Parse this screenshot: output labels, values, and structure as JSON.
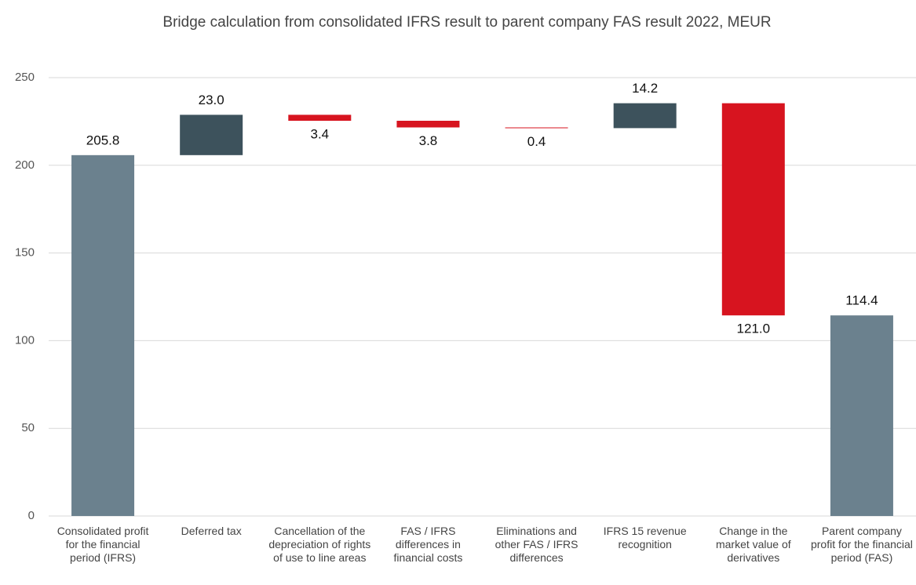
{
  "chart_data": {
    "type": "waterfall",
    "title": "Bridge calculation from consolidated IFRS result to parent company FAS result 2022, MEUR",
    "categories": [
      "Consolidated profit for the financial period (IFRS)",
      "Deferred tax",
      "Cancellation of the depreciation of rights of use to line areas",
      "FAS / IFRS differences in financial costs",
      "Eliminations and other FAS / IFRS differences",
      "IFRS 15 revenue recognition",
      "Change in the market value of derivatives",
      "Parent company profit for the financial period (FAS)"
    ],
    "values": [
      205.8,
      23.0,
      -3.4,
      -3.8,
      -0.4,
      14.2,
      -121.0,
      114.4
    ],
    "value_labels": [
      "205.8",
      "23.0",
      "3.4",
      "3.8",
      "0.4",
      "14.2",
      "121.0",
      "114.4"
    ],
    "measure": [
      "absolute",
      "relative",
      "relative",
      "relative",
      "relative",
      "relative",
      "relative",
      "total"
    ],
    "colors": {
      "total": "#6b818e",
      "increase": "#3d525c",
      "decrease": "#d7141f"
    },
    "ylim": [
      0,
      250
    ],
    "yticks": [
      0,
      50,
      100,
      150,
      200,
      250
    ],
    "grid": true
  }
}
